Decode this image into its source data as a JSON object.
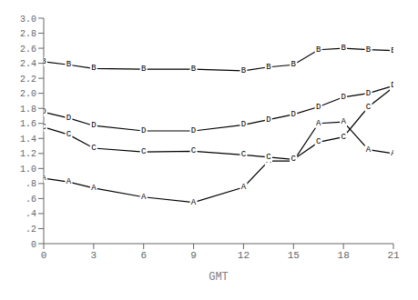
{
  "chart_data": {
    "type": "line",
    "xlabel": "GMT",
    "x": [
      0,
      1.5,
      3,
      6,
      9,
      12,
      13.5,
      15,
      16.5,
      18,
      19.5,
      21
    ],
    "series": [
      {
        "name": "A",
        "color": "#000000",
        "marker": "name",
        "values": [
          0.87,
          0.82,
          0.74,
          0.62,
          0.55,
          0.75,
          1.1,
          1.1,
          1.6,
          1.62,
          1.25,
          1.2
        ]
      },
      {
        "name": "B",
        "color": "#000000",
        "marker": "name",
        "values": [
          2.42,
          2.38,
          2.33,
          2.32,
          2.32,
          2.3,
          2.35,
          2.38,
          2.58,
          2.6,
          2.58,
          2.57
        ]
      },
      {
        "name": "C",
        "color": "#000000",
        "marker": "name",
        "values": [
          1.55,
          1.45,
          1.27,
          1.22,
          1.23,
          1.18,
          1.15,
          1.12,
          1.35,
          1.42,
          1.82,
          2.08
        ]
      },
      {
        "name": "D",
        "color": "#000000",
        "marker": "name",
        "values": [
          1.75,
          1.67,
          1.57,
          1.5,
          1.5,
          1.58,
          1.65,
          1.72,
          1.82,
          1.95,
          2.0,
          2.1
        ]
      }
    ],
    "xlim": [
      0,
      21
    ],
    "ylim": [
      0,
      3.0
    ],
    "xticks": [
      0,
      3,
      6,
      9,
      12,
      15,
      18,
      21
    ],
    "yticks": [
      0,
      {
        "value": 0.2,
        "label": ".2"
      },
      {
        "value": 0.4,
        "label": ".4"
      },
      {
        "value": 0.6,
        "label": ".6"
      },
      {
        "value": 0.8,
        "label": ".8"
      },
      {
        "value": 1.0,
        "label": "1.0"
      },
      1.2,
      1.4,
      1.6,
      1.8,
      {
        "value": 2.0,
        "label": "2.0"
      },
      2.2,
      2.4,
      2.6,
      2.8,
      {
        "value": 3.0,
        "label": "3.0"
      }
    ],
    "grid": false
  }
}
